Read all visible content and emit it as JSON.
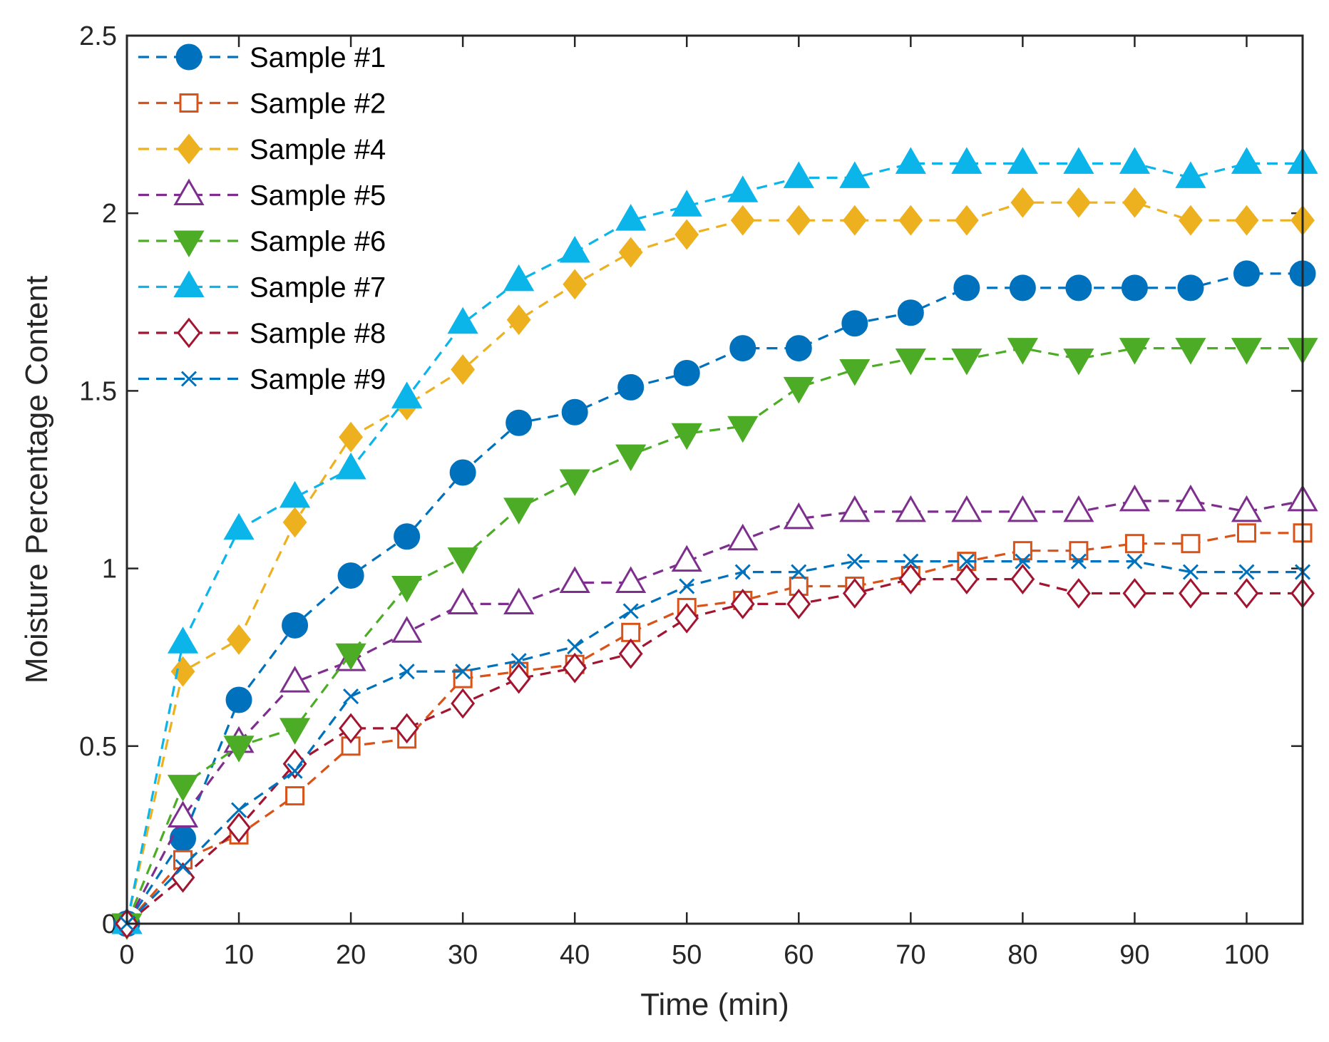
{
  "chart_data": {
    "type": "line",
    "title": "",
    "xlabel": "Time (min)",
    "ylabel": "Moisture Percentage Content",
    "xlim": [
      0,
      105
    ],
    "ylim": [
      0,
      2.5
    ],
    "xticks": [
      0,
      10,
      20,
      30,
      40,
      50,
      60,
      70,
      80,
      90,
      100
    ],
    "xtick_labels": [
      "0",
      "10",
      "20",
      "30",
      "40",
      "50",
      "60",
      "70",
      "80",
      "90",
      "100"
    ],
    "yticks": [
      0,
      0.5,
      1,
      1.5,
      2,
      2.5
    ],
    "ytick_labels": [
      "0",
      "0.5",
      "1",
      "1.5",
      "2",
      "2.5"
    ],
    "grid": false,
    "legend_position": "top-left",
    "line_style": "dashed",
    "x": [
      0,
      5,
      10,
      15,
      20,
      25,
      30,
      35,
      40,
      45,
      50,
      55,
      60,
      65,
      70,
      75,
      80,
      85,
      90,
      95,
      100,
      105
    ],
    "series": [
      {
        "name": "Sample #1",
        "color": "#0072BD",
        "marker": "circle-filled",
        "values": [
          0,
          0.24,
          0.63,
          0.84,
          0.98,
          1.09,
          1.27,
          1.41,
          1.44,
          1.51,
          1.55,
          1.62,
          1.62,
          1.69,
          1.72,
          1.79,
          1.79,
          1.79,
          1.79,
          1.79,
          1.83,
          1.83
        ]
      },
      {
        "name": "Sample #2",
        "color": "#D95319",
        "marker": "square-open",
        "values": [
          0,
          0.18,
          0.25,
          0.36,
          0.5,
          0.52,
          0.69,
          0.71,
          0.73,
          0.82,
          0.89,
          0.91,
          0.95,
          0.95,
          0.98,
          1.02,
          1.05,
          1.05,
          1.07,
          1.07,
          1.1,
          1.1
        ]
      },
      {
        "name": "Sample #4",
        "color": "#EDB120",
        "marker": "diamond-filled",
        "values": [
          0,
          0.71,
          0.8,
          1.13,
          1.37,
          1.46,
          1.56,
          1.7,
          1.8,
          1.89,
          1.94,
          1.98,
          1.98,
          1.98,
          1.98,
          1.98,
          2.03,
          2.03,
          2.03,
          1.98,
          1.98,
          1.98
        ]
      },
      {
        "name": "Sample #5",
        "color": "#7E2F8E",
        "marker": "triangle-up-open",
        "values": [
          0,
          0.3,
          0.51,
          0.68,
          0.74,
          0.82,
          0.9,
          0.9,
          0.96,
          0.96,
          1.02,
          1.08,
          1.14,
          1.16,
          1.16,
          1.16,
          1.16,
          1.16,
          1.19,
          1.19,
          1.16,
          1.19
        ]
      },
      {
        "name": "Sample #6",
        "color": "#4DAC26",
        "marker": "triangle-down-filled",
        "values": [
          0,
          0.39,
          0.5,
          0.55,
          0.76,
          0.95,
          1.03,
          1.17,
          1.25,
          1.32,
          1.38,
          1.4,
          1.51,
          1.56,
          1.59,
          1.59,
          1.62,
          1.59,
          1.62,
          1.62,
          1.62,
          1.62
        ]
      },
      {
        "name": "Sample #7",
        "color": "#0BB5EA",
        "marker": "triangle-up-filled",
        "values": [
          0,
          0.79,
          1.11,
          1.2,
          1.28,
          1.48,
          1.69,
          1.81,
          1.89,
          1.98,
          2.02,
          2.06,
          2.1,
          2.1,
          2.14,
          2.14,
          2.14,
          2.14,
          2.14,
          2.1,
          2.14,
          2.14
        ]
      },
      {
        "name": "Sample #8",
        "color": "#A2142F",
        "marker": "diamond-open",
        "values": [
          0,
          0.13,
          0.27,
          0.45,
          0.55,
          0.55,
          0.62,
          0.69,
          0.72,
          0.76,
          0.86,
          0.9,
          0.9,
          0.93,
          0.97,
          0.97,
          0.97,
          0.93,
          0.93,
          0.93,
          0.93,
          0.93
        ]
      },
      {
        "name": "Sample #9",
        "color": "#0072BD",
        "marker": "x",
        "values": [
          0,
          0.16,
          0.32,
          0.43,
          0.64,
          0.71,
          0.71,
          0.74,
          0.78,
          0.88,
          0.95,
          0.99,
          0.99,
          1.02,
          1.02,
          1.02,
          1.02,
          1.02,
          1.02,
          0.99,
          0.99,
          0.99
        ]
      }
    ]
  }
}
